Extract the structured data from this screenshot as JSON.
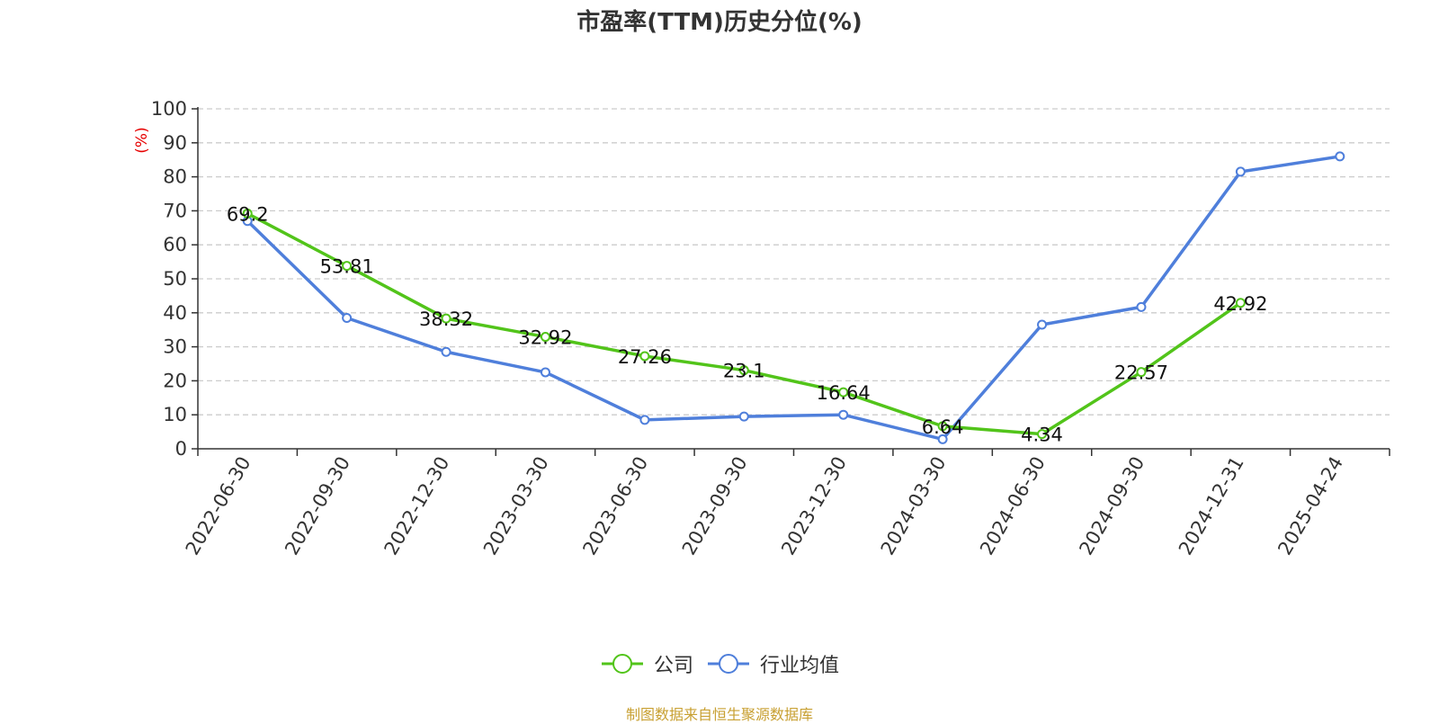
{
  "chart_data": {
    "type": "line",
    "title": "市盈率(TTM)历史分位(%)",
    "ylabel": "(%)",
    "xlabel": "",
    "ylim": [
      0,
      100
    ],
    "yticks": [
      0,
      10,
      20,
      30,
      40,
      50,
      60,
      70,
      80,
      90,
      100
    ],
    "categories": [
      "2022-06-30",
      "2022-09-30",
      "2022-12-30",
      "2023-03-30",
      "2023-06-30",
      "2023-09-30",
      "2023-12-30",
      "2024-03-30",
      "2024-06-30",
      "2024-09-30",
      "2024-12-31",
      "2025-04-24"
    ],
    "series": [
      {
        "name": "公司",
        "color": "#52c41a",
        "values": [
          69.2,
          53.81,
          38.32,
          32.92,
          27.26,
          23.1,
          16.64,
          6.64,
          4.34,
          22.57,
          42.92,
          null
        ],
        "labels": [
          "69.2",
          "53.81",
          "38.32",
          "32.92",
          "27.26",
          "23.1",
          "16.64",
          "6.64",
          "4.34",
          "22.57",
          "42.92",
          ""
        ]
      },
      {
        "name": "行业均值",
        "color": "#4f7fdb",
        "values": [
          67,
          38.5,
          28.5,
          22.5,
          8.5,
          9.5,
          10,
          2.8,
          36.5,
          41.7,
          81.5,
          86
        ]
      }
    ],
    "grid": true,
    "legend_position": "bottom-center",
    "source": "制图数据来自恒生聚源数据库"
  }
}
